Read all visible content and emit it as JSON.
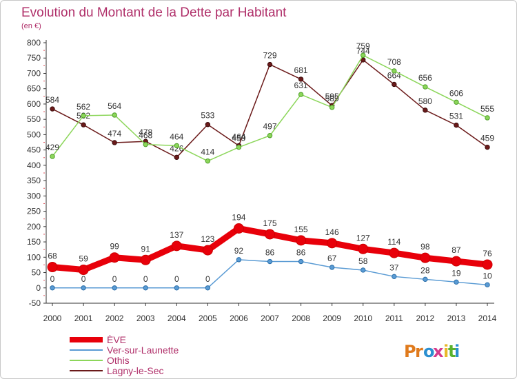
{
  "chart_data": {
    "type": "line",
    "title": "Evolution du Montant de la Dette par Habitant",
    "subtitle": "(en €)",
    "categories": [
      "2000",
      "2001",
      "2002",
      "2003",
      "2004",
      "2005",
      "2006",
      "2007",
      "2008",
      "2009",
      "2010",
      "2011",
      "2012",
      "2013",
      "2014"
    ],
    "ylim": [
      -50,
      800
    ],
    "yticks": [
      -50,
      0,
      50,
      100,
      150,
      200,
      250,
      300,
      350,
      400,
      450,
      500,
      550,
      600,
      650,
      700,
      750,
      800
    ],
    "grid": false,
    "legend_position": "bottom-left",
    "series": [
      {
        "name": "ÈVE",
        "color": "#e8000a",
        "values": [
          68,
          59,
          99,
          91,
          137,
          123,
          194,
          175,
          155,
          146,
          127,
          114,
          98,
          87,
          76
        ]
      },
      {
        "name": "Ver-sur-Launette",
        "color": "#5a9bd4",
        "values": [
          0,
          0,
          0,
          0,
          0,
          0,
          92,
          86,
          86,
          67,
          58,
          37,
          28,
          19,
          10
        ]
      },
      {
        "name": "Othis",
        "color": "#8cd65a",
        "values": [
          429,
          562,
          564,
          468,
          464,
          414,
          459,
          497,
          631,
          589,
          759,
          708,
          656,
          606,
          555
        ]
      },
      {
        "name": "Lagny-le-Sec",
        "color": "#6b1a1a",
        "values": [
          584,
          532,
          474,
          478,
          426,
          533,
          464,
          729,
          681,
          595,
          744,
          664,
          580,
          531,
          459
        ]
      }
    ]
  },
  "logo": {
    "text": "Proxiti"
  }
}
